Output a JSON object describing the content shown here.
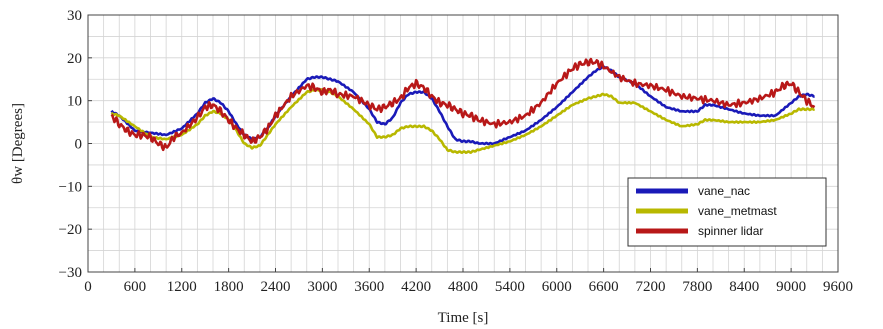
{
  "chart_data": {
    "type": "line",
    "title": "",
    "xlabel": "Time [s]",
    "ylabel": "θw [Degrees]",
    "xlim": [
      0,
      9600
    ],
    "ylim": [
      -30,
      30
    ],
    "xticks": [
      0,
      600,
      1200,
      1800,
      2400,
      3000,
      3600,
      4200,
      4800,
      5400,
      6000,
      6600,
      7200,
      7800,
      8400,
      9000,
      9600
    ],
    "yticks": [
      -30,
      -20,
      -10,
      0,
      10,
      20,
      30
    ],
    "grid": true,
    "legend": "lower-right",
    "series": [
      {
        "name": "vane_nac",
        "color": "#1a1ab8",
        "x": [
          300,
          400,
          600,
          800,
          1000,
          1200,
          1400,
          1500,
          1600,
          1700,
          1800,
          1900,
          2000,
          2100,
          2200,
          2300,
          2400,
          2600,
          2800,
          2900,
          3000,
          3100,
          3200,
          3400,
          3600,
          3700,
          3800,
          3900,
          4000,
          4100,
          4200,
          4300,
          4400,
          4500,
          4600,
          4700,
          4800,
          4900,
          5000,
          5200,
          5400,
          5600,
          5800,
          6000,
          6200,
          6400,
          6500,
          6600,
          6700,
          6800,
          7000,
          7200,
          7400,
          7600,
          7800,
          7900,
          8000,
          8200,
          8400,
          8600,
          8800,
          9000,
          9100,
          9200,
          9300
        ],
        "values": [
          7.5,
          6.5,
          3.0,
          2.5,
          2.0,
          3.5,
          7.0,
          9.5,
          10.5,
          9.5,
          7.5,
          4.5,
          2.0,
          1.0,
          1.5,
          3.5,
          6.5,
          11.0,
          15.0,
          15.5,
          15.5,
          15.0,
          14.5,
          12.0,
          8.0,
          5.0,
          4.5,
          6.0,
          9.5,
          11.5,
          12.0,
          12.0,
          10.5,
          7.5,
          4.0,
          1.0,
          0.5,
          0.5,
          0.0,
          0.0,
          1.5,
          3.0,
          5.5,
          8.5,
          12.0,
          15.5,
          17.0,
          18.0,
          17.0,
          15.5,
          14.0,
          11.0,
          8.5,
          7.5,
          7.5,
          9.0,
          9.0,
          8.0,
          7.0,
          6.5,
          6.5,
          9.5,
          11.0,
          11.5,
          11.0
        ]
      },
      {
        "name": "vane_metmast",
        "color": "#b8b800",
        "x": [
          300,
          400,
          600,
          800,
          1000,
          1200,
          1400,
          1500,
          1600,
          1700,
          1800,
          1900,
          2000,
          2100,
          2200,
          2300,
          2400,
          2600,
          2800,
          2900,
          3000,
          3100,
          3200,
          3400,
          3600,
          3700,
          3800,
          3900,
          4000,
          4100,
          4200,
          4300,
          4400,
          4500,
          4600,
          4700,
          4800,
          4900,
          5000,
          5200,
          5400,
          5600,
          5800,
          6000,
          6200,
          6400,
          6500,
          6600,
          6700,
          6800,
          7000,
          7200,
          7400,
          7600,
          7800,
          7900,
          8000,
          8200,
          8400,
          8600,
          8800,
          9000,
          9100,
          9200,
          9300
        ],
        "values": [
          7.0,
          6.5,
          4.0,
          1.5,
          1.0,
          2.0,
          4.5,
          6.5,
          7.5,
          7.0,
          5.5,
          3.0,
          0.0,
          -1.0,
          -0.5,
          2.0,
          4.5,
          8.5,
          12.0,
          12.5,
          12.5,
          12.0,
          11.0,
          8.0,
          4.5,
          1.5,
          1.5,
          2.0,
          3.5,
          4.0,
          4.0,
          4.0,
          3.0,
          1.0,
          -1.5,
          -2.0,
          -2.0,
          -2.0,
          -1.5,
          -0.5,
          0.5,
          2.0,
          4.0,
          6.5,
          9.0,
          10.5,
          11.0,
          11.5,
          11.0,
          9.5,
          9.5,
          7.5,
          5.5,
          4.0,
          4.5,
          5.5,
          5.5,
          5.0,
          5.0,
          5.0,
          5.5,
          7.0,
          8.0,
          8.0,
          8.0
        ]
      },
      {
        "name": "spinner lidar",
        "color": "#b81818",
        "x": [
          300,
          400,
          500,
          600,
          700,
          800,
          900,
          1000,
          1100,
          1200,
          1400,
          1500,
          1600,
          1700,
          1800,
          1900,
          2000,
          2100,
          2200,
          2300,
          2400,
          2600,
          2800,
          2900,
          3000,
          3100,
          3200,
          3400,
          3600,
          3700,
          3800,
          3900,
          4000,
          4100,
          4200,
          4300,
          4400,
          4500,
          4600,
          4700,
          4800,
          4900,
          5000,
          5200,
          5400,
          5600,
          5800,
          6000,
          6200,
          6300,
          6400,
          6500,
          6600,
          6800,
          7000,
          7200,
          7400,
          7600,
          7800,
          8000,
          8200,
          8400,
          8600,
          8800,
          8900,
          9000,
          9100,
          9200,
          9300
        ],
        "values": [
          6.5,
          4.5,
          3.0,
          2.0,
          2.0,
          1.5,
          0.0,
          -1.0,
          1.5,
          2.5,
          6.0,
          8.5,
          9.0,
          7.5,
          5.5,
          3.5,
          2.0,
          0.5,
          1.5,
          3.5,
          6.5,
          11.0,
          13.5,
          13.0,
          12.0,
          12.5,
          11.5,
          11.0,
          9.0,
          8.0,
          8.5,
          9.5,
          10.5,
          13.0,
          14.0,
          13.0,
          11.0,
          9.5,
          9.0,
          8.0,
          7.0,
          6.5,
          5.5,
          4.5,
          5.0,
          6.5,
          9.5,
          14.0,
          17.5,
          18.5,
          19.0,
          19.0,
          18.0,
          15.5,
          14.0,
          13.5,
          12.5,
          11.0,
          10.5,
          10.0,
          9.0,
          9.5,
          10.5,
          12.0,
          13.5,
          14.0,
          12.0,
          10.0,
          8.5
        ]
      }
    ]
  }
}
